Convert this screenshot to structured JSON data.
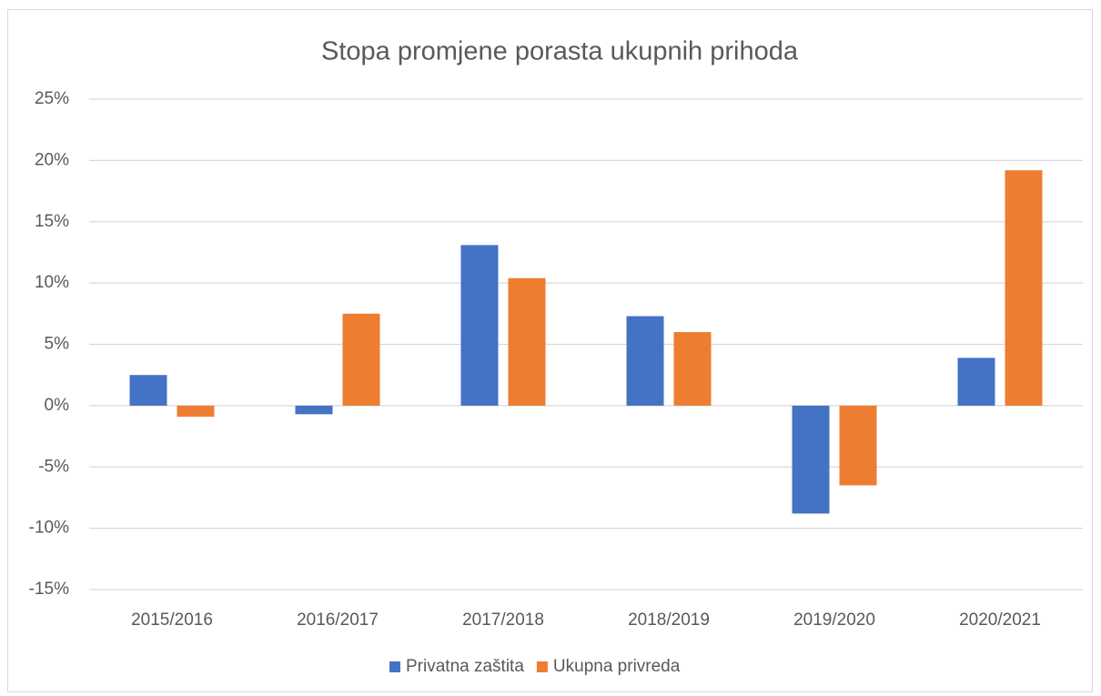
{
  "chart_data": {
    "type": "bar",
    "title": "Stopa promjene porasta ukupnih prihoda",
    "categories": [
      "2015/2016",
      "2016/2017",
      "2017/2018",
      "2018/2019",
      "2019/2020",
      "2020/2021"
    ],
    "series": [
      {
        "name": "Privatna zaštita",
        "color": "#4472c4",
        "values": [
          2.5,
          -0.7,
          13.1,
          7.3,
          -8.8,
          3.9
        ]
      },
      {
        "name": "Ukupna privreda",
        "color": "#ed7d31",
        "values": [
          -0.9,
          7.5,
          10.4,
          6.0,
          -6.5,
          19.2
        ]
      }
    ],
    "ylim": [
      -15,
      25
    ],
    "yticks": [
      {
        "value": -15,
        "label": "-15%"
      },
      {
        "value": -10,
        "label": "-10%"
      },
      {
        "value": -5,
        "label": "-5%"
      },
      {
        "value": 0,
        "label": "0%"
      },
      {
        "value": 5,
        "label": "5%"
      },
      {
        "value": 10,
        "label": "10%"
      },
      {
        "value": 15,
        "label": "15%"
      },
      {
        "value": 20,
        "label": "20%"
      },
      {
        "value": 25,
        "label": "25%"
      }
    ],
    "grid": true,
    "legend": "bottom"
  }
}
